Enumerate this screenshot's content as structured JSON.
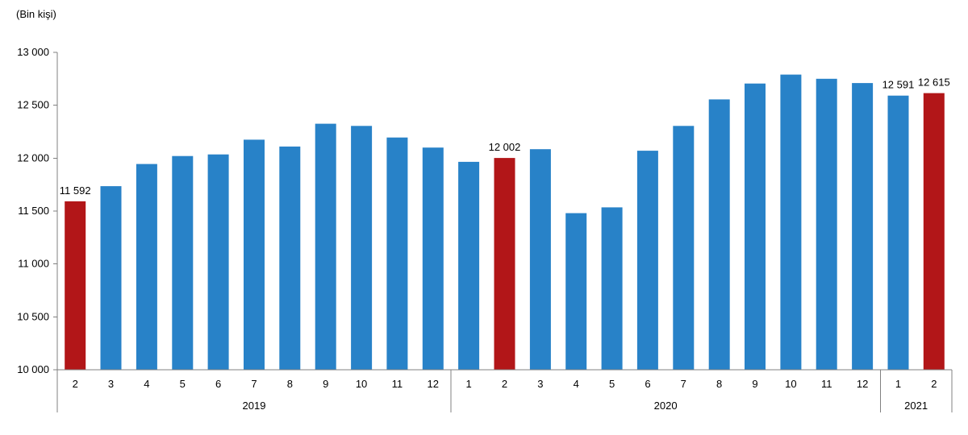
{
  "chart_data": {
    "type": "bar",
    "unit_label": "(Bin kişi)",
    "ylim": [
      10000,
      13000
    ],
    "yticks": [
      10000,
      10500,
      11000,
      11500,
      12000,
      12500,
      13000
    ],
    "ytick_labels": [
      "10 000",
      "10 500",
      "11 000",
      "11 500",
      "12 000",
      "12 500",
      "13 000"
    ],
    "categories": [
      "2",
      "3",
      "4",
      "5",
      "6",
      "7",
      "8",
      "9",
      "10",
      "11",
      "12",
      "1",
      "2",
      "3",
      "4",
      "5",
      "6",
      "7",
      "8",
      "9",
      "10",
      "11",
      "12",
      "1",
      "2"
    ],
    "values": [
      11592,
      11735,
      11945,
      12020,
      12035,
      12175,
      12110,
      12325,
      12305,
      12195,
      12100,
      11965,
      12002,
      12085,
      11480,
      11535,
      12070,
      12305,
      12555,
      12705,
      12790,
      12750,
      12710,
      12591,
      12615
    ],
    "highlight": [
      0,
      12,
      24
    ],
    "data_labels": [
      {
        "index": 0,
        "text": "11 592"
      },
      {
        "index": 12,
        "text": "12 002"
      },
      {
        "index": 23,
        "text": "12 591"
      },
      {
        "index": 24,
        "text": "12 615"
      }
    ],
    "groups": [
      {
        "label": "2019",
        "start": 0,
        "end": 10
      },
      {
        "label": "2020",
        "start": 11,
        "end": 22
      },
      {
        "label": "2021",
        "start": 23,
        "end": 24
      }
    ],
    "grid": false,
    "legend": "none",
    "colors": {
      "bar": "#2882c8",
      "highlight": "#b21618",
      "axis": "#808080",
      "text": "#000000"
    }
  }
}
